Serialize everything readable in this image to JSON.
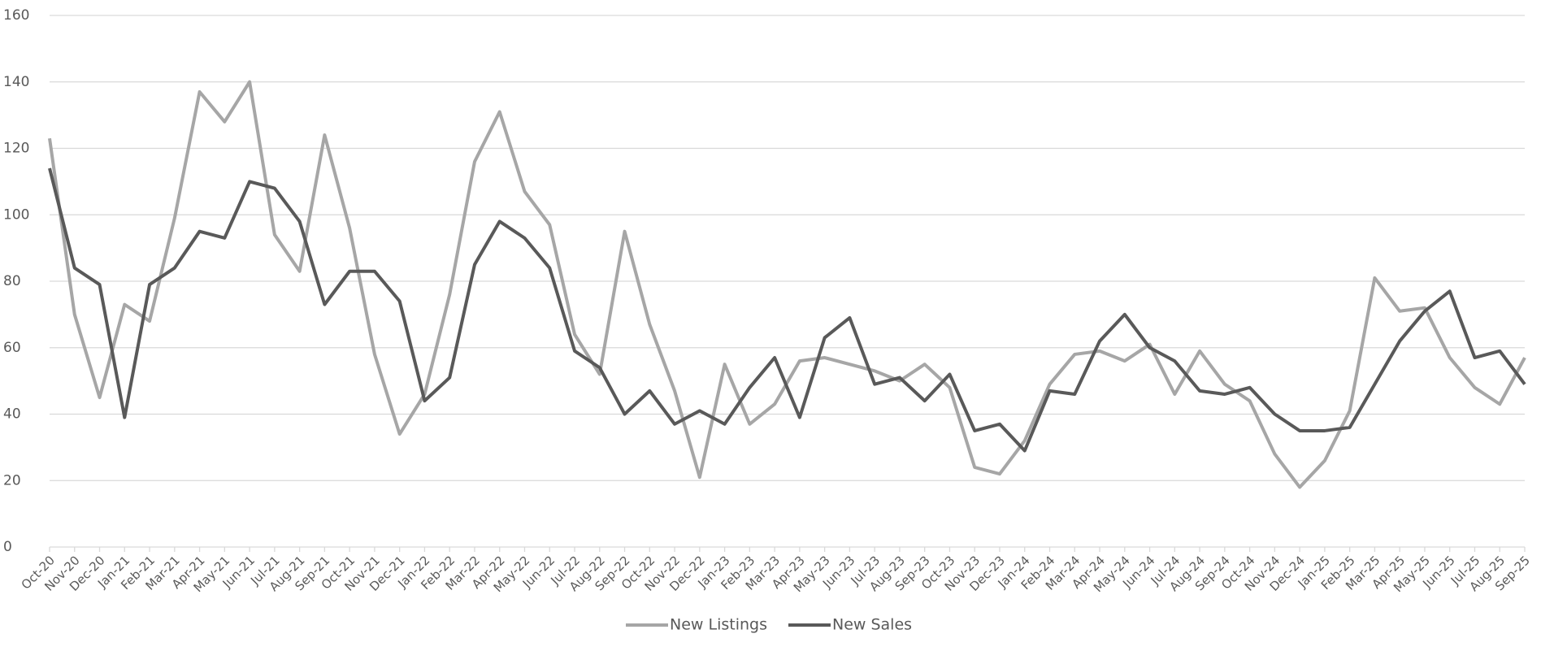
{
  "chart_data": {
    "type": "line",
    "categories": [
      "Oct-20",
      "Nov-20",
      "Dec-20",
      "Jan-21",
      "Feb-21",
      "Mar-21",
      "Apr-21",
      "May-21",
      "Jun-21",
      "Jul-21",
      "Aug-21",
      "Sep-21",
      "Oct-21",
      "Nov-21",
      "Dec-21",
      "Jan-22",
      "Feb-22",
      "Mar-22",
      "Apr-22",
      "May-22",
      "Jun-22",
      "Jul-22",
      "Aug-22",
      "Sep-22",
      "Oct-22",
      "Nov-22",
      "Dec-22",
      "Jan-23",
      "Feb-23",
      "Mar-23",
      "Apr-23",
      "May-23",
      "Jun-23",
      "Jul-23",
      "Aug-23",
      "Sep-23",
      "Oct-23",
      "Nov-23",
      "Dec-23",
      "Jan-24",
      "Feb-24",
      "Mar-24",
      "Apr-24",
      "May-24",
      "Jun-24",
      "Jul-24",
      "Aug-24",
      "Sep-24",
      "Oct-24",
      "Nov-24",
      "Dec-24",
      "Jan-25",
      "Feb-25",
      "Mar-25",
      "Apr-25",
      "May-25",
      "Jun-25",
      "Jul-25",
      "Aug-25",
      "Sep-25"
    ],
    "series": [
      {
        "name": "New Listings",
        "color": "#a6a6a6",
        "values": [
          123,
          70,
          45,
          73,
          68,
          99,
          137,
          128,
          140,
          94,
          83,
          124,
          96,
          58,
          34,
          46,
          76,
          116,
          131,
          107,
          97,
          64,
          52,
          95,
          67,
          47,
          21,
          55,
          37,
          43,
          56,
          57,
          55,
          53,
          50,
          55,
          48,
          24,
          22,
          32,
          49,
          58,
          59,
          56,
          61,
          46,
          59,
          49,
          44,
          28,
          18,
          26,
          41,
          81,
          71,
          72,
          57,
          48,
          43,
          57
        ]
      },
      {
        "name": "New Sales",
        "color": "#595959",
        "values": [
          114,
          84,
          79,
          39,
          79,
          84,
          95,
          93,
          110,
          108,
          98,
          73,
          83,
          83,
          74,
          44,
          51,
          85,
          98,
          93,
          84,
          59,
          54,
          40,
          47,
          37,
          41,
          37,
          48,
          57,
          39,
          63,
          69,
          49,
          51,
          44,
          52,
          35,
          37,
          29,
          47,
          46,
          62,
          70,
          60,
          56,
          47,
          46,
          48,
          40,
          35,
          35,
          36,
          49,
          62,
          71,
          77,
          57,
          59,
          49
        ]
      }
    ],
    "ylim": [
      0,
      160
    ],
    "yticks": [
      0,
      20,
      40,
      60,
      80,
      100,
      120,
      140,
      160
    ],
    "grid": true,
    "legend": "bottom"
  }
}
